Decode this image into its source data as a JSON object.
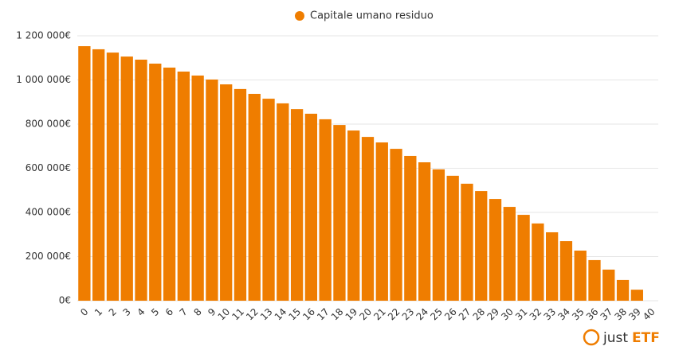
{
  "chart_data": {
    "type": "bar",
    "legend": "Capitale umano residuo",
    "color": "#ef7d00",
    "categories": [
      "0",
      "1",
      "2",
      "3",
      "4",
      "5",
      "6",
      "7",
      "8",
      "9",
      "10",
      "11",
      "12",
      "13",
      "14",
      "15",
      "16",
      "17",
      "18",
      "19",
      "20",
      "21",
      "22",
      "23",
      "24",
      "25",
      "26",
      "27",
      "28",
      "29",
      "30",
      "31",
      "32",
      "33",
      "34",
      "35",
      "36",
      "37",
      "38",
      "39",
      "40"
    ],
    "values": [
      1153000,
      1139000,
      1124000,
      1106000,
      1092000,
      1074000,
      1056000,
      1038000,
      1020000,
      1002000,
      980000,
      959000,
      937000,
      915000,
      894000,
      868000,
      847000,
      822000,
      796000,
      771000,
      742000,
      717000,
      688000,
      656000,
      627000,
      595000,
      566000,
      530000,
      497000,
      461000,
      425000,
      389000,
      350000,
      310000,
      270000,
      227000,
      184000,
      141000,
      94000,
      50000,
      0
    ],
    "ylim": [
      0,
      1200000
    ],
    "yticks": [
      {
        "value": 0,
        "label": "0€"
      },
      {
        "value": 200000,
        "label": "200 000€"
      },
      {
        "value": 400000,
        "label": "400 000€"
      },
      {
        "value": 600000,
        "label": "600 000€"
      },
      {
        "value": 800000,
        "label": "800 000€"
      },
      {
        "value": 1000000,
        "label": "1 000 000€"
      },
      {
        "value": 1200000,
        "label": "1 200 000€"
      }
    ],
    "grid": true
  },
  "brand": {
    "prefix": "just",
    "suffix": "ETF"
  }
}
